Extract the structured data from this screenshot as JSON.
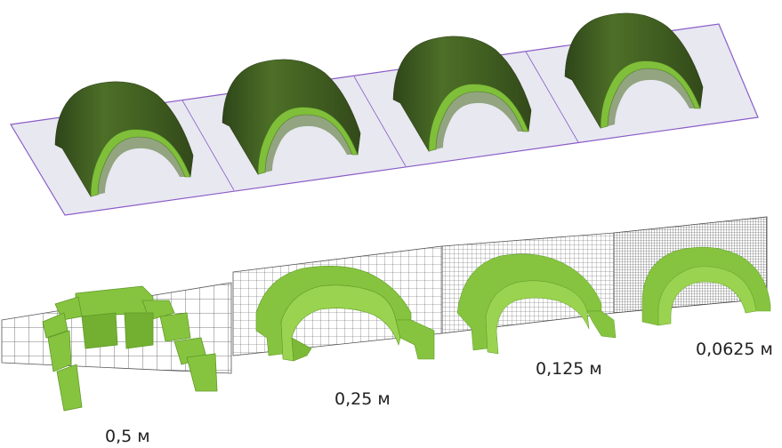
{
  "labels": {
    "size_05": "0,5 м",
    "size_025": "0,25 м",
    "size_0125": "0,125 м",
    "size_00625": "0,0625 м"
  },
  "colors": {
    "arch_dark": "#3e5a1e",
    "arch_mid": "#587e2b",
    "arch_light": "#7fbf3a",
    "voxel_green": "#86c440",
    "voxel_dark": "#5f9a26",
    "plane": "#e9e9f2",
    "plane_edge": "#8a5cc8",
    "grid_line": "#555555"
  }
}
